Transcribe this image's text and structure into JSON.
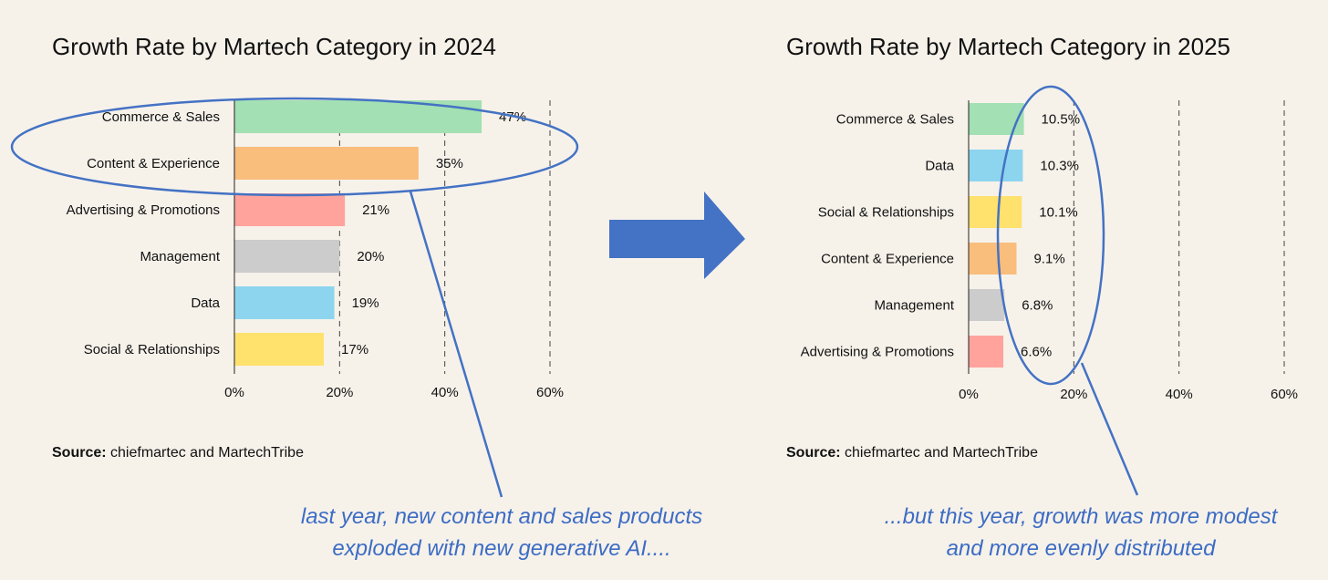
{
  "chart_data": [
    {
      "type": "bar",
      "orientation": "horizontal",
      "title": "Growth Rate by Martech Category in 2024",
      "categories": [
        "Commerce & Sales",
        "Content & Experience",
        "Advertising & Promotions",
        "Management",
        "Data",
        "Social & Relationships"
      ],
      "values": [
        47,
        35,
        21,
        20,
        19,
        17
      ],
      "value_labels": [
        "47%",
        "35%",
        "21%",
        "20%",
        "19%",
        "17%"
      ],
      "colors": [
        "#a3e0b3",
        "#f9bd7c",
        "#ffa39c",
        "#cccccc",
        "#8dd5ef",
        "#ffe16e"
      ],
      "xlim": [
        0,
        60
      ],
      "x_ticks": [
        0,
        20,
        40,
        60
      ],
      "x_tick_labels": [
        "0%",
        "20%",
        "40%",
        "60%"
      ],
      "grid": "vertical dashed",
      "xlabel": "",
      "ylabel": "",
      "source_label": "Source:",
      "source_text": " chiefmartec and MartechTribe"
    },
    {
      "type": "bar",
      "orientation": "horizontal",
      "title": "Growth Rate by Martech Category in 2025",
      "categories": [
        "Commerce & Sales",
        "Data",
        "Social & Relationships",
        "Content & Experience",
        "Management",
        "Advertising & Promotions"
      ],
      "values": [
        10.5,
        10.3,
        10.1,
        9.1,
        6.8,
        6.6
      ],
      "value_labels": [
        "10.5%",
        "10.3%",
        "10.1%",
        "9.1%",
        "6.8%",
        "6.6%"
      ],
      "colors": [
        "#a3e0b3",
        "#8dd5ef",
        "#ffe16e",
        "#f9bd7c",
        "#cccccc",
        "#ffa39c"
      ],
      "xlim": [
        0,
        60
      ],
      "x_ticks": [
        0,
        20,
        40,
        60
      ],
      "x_tick_labels": [
        "0%",
        "20%",
        "40%",
        "60%"
      ],
      "grid": "vertical dashed",
      "xlabel": "",
      "ylabel": "",
      "source_label": "Source:",
      "source_text": " chiefmartec and MartechTribe"
    }
  ],
  "annotations": {
    "left_caption": [
      "last year, new content and sales products",
      "exploded with new generative AI...."
    ],
    "right_caption": [
      "...but this year, growth was more modest",
      "and more evenly distributed"
    ],
    "annotation_color": "#4472c4",
    "arrow_color": "#4472c4"
  }
}
